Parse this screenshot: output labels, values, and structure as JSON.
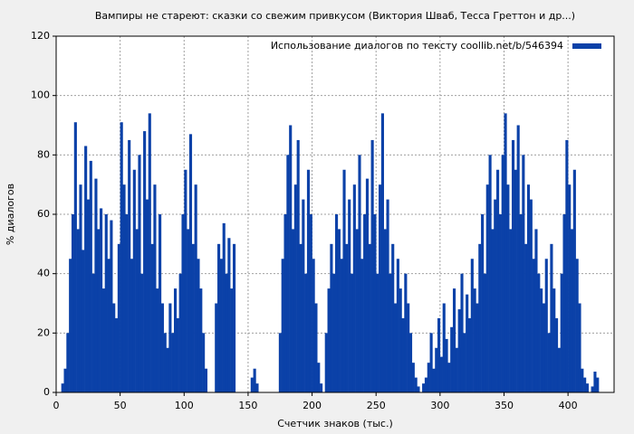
{
  "chart_data": {
    "type": "bar",
    "title": "Вампиры не стареют: сказки со свежим привкусом (Виктория Шваб, Тесса Греттон и др...)",
    "xlabel": "Счетчик знаков (тыс.)",
    "ylabel": "% диалогов",
    "legend_position": "top-right",
    "grid": true,
    "xlim": [
      0,
      436
    ],
    "ylim": [
      0,
      120
    ],
    "xticks": [
      0,
      50,
      100,
      150,
      200,
      250,
      300,
      350,
      400
    ],
    "yticks": [
      0,
      20,
      40,
      60,
      80,
      100,
      120
    ],
    "series": [
      {
        "name": "Использование диалогов по тексту  coollib.net/b/546394",
        "color": "#0b41a8",
        "x": [
          5,
          7,
          9,
          11,
          13,
          15,
          17,
          19,
          21,
          23,
          25,
          27,
          29,
          31,
          33,
          35,
          37,
          39,
          41,
          43,
          45,
          47,
          49,
          51,
          53,
          55,
          57,
          59,
          61,
          63,
          65,
          67,
          69,
          71,
          73,
          75,
          77,
          79,
          81,
          83,
          85,
          87,
          89,
          91,
          93,
          95,
          97,
          99,
          101,
          103,
          105,
          107,
          109,
          111,
          113,
          115,
          117,
          119,
          121,
          123,
          125,
          127,
          129,
          131,
          133,
          135,
          137,
          139,
          141,
          143,
          145,
          147,
          149,
          151,
          153,
          155,
          157,
          159,
          161,
          163,
          165,
          167,
          169,
          171,
          173,
          175,
          177,
          179,
          181,
          183,
          185,
          187,
          189,
          191,
          193,
          195,
          197,
          199,
          201,
          203,
          205,
          207,
          209,
          211,
          213,
          215,
          217,
          219,
          221,
          223,
          225,
          227,
          229,
          231,
          233,
          235,
          237,
          239,
          241,
          243,
          245,
          247,
          249,
          251,
          253,
          255,
          257,
          259,
          261,
          263,
          265,
          267,
          269,
          271,
          273,
          275,
          277,
          279,
          281,
          283,
          285,
          287,
          289,
          291,
          293,
          295,
          297,
          299,
          301,
          303,
          305,
          307,
          309,
          311,
          313,
          315,
          317,
          319,
          321,
          323,
          325,
          327,
          329,
          331,
          333,
          335,
          337,
          339,
          341,
          343,
          345,
          347,
          349,
          351,
          353,
          355,
          357,
          359,
          361,
          363,
          365,
          367,
          369,
          371,
          373,
          375,
          377,
          379,
          381,
          383,
          385,
          387,
          389,
          391,
          393,
          395,
          397,
          399,
          401,
          403,
          405,
          407,
          409,
          411,
          413,
          415,
          417,
          419,
          421,
          423
        ],
        "values": [
          3,
          8,
          20,
          45,
          60,
          91,
          55,
          70,
          48,
          83,
          65,
          78,
          40,
          72,
          55,
          62,
          35,
          60,
          45,
          58,
          30,
          25,
          50,
          91,
          70,
          60,
          85,
          45,
          75,
          55,
          80,
          40,
          88,
          65,
          94,
          50,
          70,
          35,
          60,
          30,
          20,
          15,
          30,
          20,
          35,
          25,
          40,
          60,
          75,
          55,
          87,
          50,
          70,
          45,
          35,
          20,
          8,
          0,
          0,
          0,
          30,
          50,
          45,
          57,
          40,
          52,
          35,
          50,
          0,
          0,
          0,
          0,
          0,
          0,
          5,
          8,
          3,
          0,
          0,
          0,
          0,
          0,
          0,
          0,
          0,
          20,
          45,
          60,
          80,
          90,
          55,
          70,
          85,
          50,
          65,
          40,
          75,
          60,
          45,
          30,
          10,
          3,
          0,
          20,
          35,
          50,
          40,
          60,
          55,
          45,
          75,
          50,
          65,
          40,
          70,
          55,
          80,
          45,
          60,
          72,
          50,
          85,
          60,
          40,
          70,
          94,
          55,
          65,
          40,
          50,
          30,
          45,
          35,
          25,
          40,
          30,
          20,
          10,
          5,
          2,
          0,
          3,
          5,
          10,
          20,
          8,
          15,
          25,
          12,
          30,
          18,
          10,
          22,
          35,
          15,
          28,
          40,
          20,
          33,
          25,
          45,
          35,
          30,
          50,
          60,
          40,
          70,
          80,
          55,
          65,
          75,
          60,
          80,
          94,
          70,
          55,
          85,
          75,
          90,
          60,
          80,
          50,
          70,
          65,
          45,
          55,
          40,
          35,
          30,
          45,
          20,
          50,
          35,
          25,
          15,
          40,
          60,
          85,
          70,
          55,
          75,
          45,
          30,
          8,
          5,
          3,
          0,
          2,
          7,
          5
        ]
      }
    ]
  }
}
